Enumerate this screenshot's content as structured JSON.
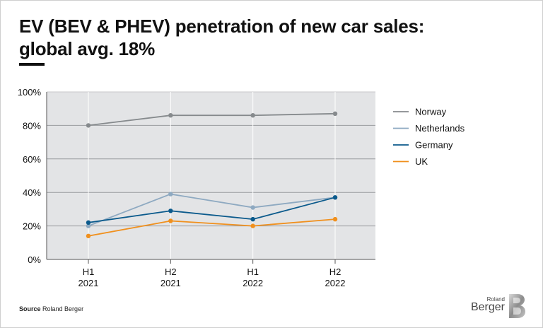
{
  "title_line1": "EV (BEV & PHEV) penetration of new car sales:",
  "title_line2": "global avg. 18%",
  "source_label": "Source",
  "source_text": "Roland Berger",
  "brand_small": "Roland",
  "brand_large": "Berger",
  "chart_data": {
    "type": "line",
    "title": "EV (BEV & PHEV) penetration of new car sales: global avg. 18%",
    "xlabel": "",
    "ylabel": "",
    "ylim": [
      0,
      100
    ],
    "yticks": [
      "0%",
      "20%",
      "40%",
      "60%",
      "80%",
      "100%"
    ],
    "categories": [
      [
        "H1",
        "2021"
      ],
      [
        "H2",
        "2021"
      ],
      [
        "H1",
        "2022"
      ],
      [
        "H2",
        "2022"
      ]
    ],
    "legend_position": "right",
    "grid": true,
    "series": [
      {
        "name": "Norway",
        "color": "#868a8d",
        "values": [
          80,
          86,
          86,
          87
        ]
      },
      {
        "name": "Netherlands",
        "color": "#8ea9c1",
        "values": [
          20,
          39,
          31,
          37
        ]
      },
      {
        "name": "Germany",
        "color": "#0b5a8c",
        "values": [
          22,
          29,
          24,
          37
        ]
      },
      {
        "name": "UK",
        "color": "#f0901e",
        "values": [
          14,
          23,
          20,
          24
        ]
      }
    ]
  }
}
